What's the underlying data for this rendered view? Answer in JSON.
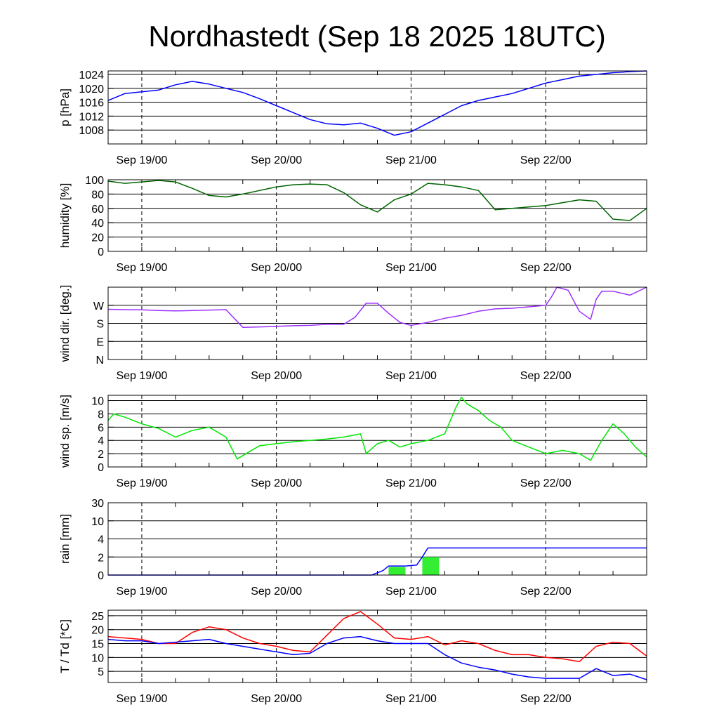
{
  "title": "Nordhastedt (Sep 18 2025 18UTC)",
  "chart_data": [
    {
      "id": "pressure",
      "type": "line",
      "ylabel": "p [hPa]",
      "ylim": [
        1004,
        1025
      ],
      "yticks": [
        1008,
        1012,
        1016,
        1020,
        1024
      ],
      "ytick_labels": [
        "1008",
        "1012",
        "1016",
        "1020",
        "1024"
      ],
      "x_tick_labels": [
        "Sep 19/00",
        "Sep 20/00",
        "Sep 21/00",
        "Sep 22/00"
      ],
      "series": [
        {
          "color": "#0000ff",
          "x": [
            0,
            3,
            6,
            9,
            12,
            15,
            18,
            21,
            24,
            27,
            30,
            33,
            36,
            39,
            42,
            45,
            48,
            51,
            54,
            57,
            60,
            63,
            66,
            69,
            72,
            75,
            78,
            81,
            84,
            87,
            90,
            93,
            96
          ],
          "y": [
            1016.5,
            1018.5,
            1019,
            1019.5,
            1021,
            1022,
            1021.2,
            1020,
            1018.8,
            1017,
            1015,
            1013,
            1011,
            1009.8,
            1009.5,
            1010,
            1008.5,
            1006.5,
            1007.5,
            1010,
            1012.5,
            1015,
            1016.5,
            1017.5,
            1018.5,
            1020,
            1021.5,
            1022.5,
            1023.5,
            1024,
            1024.5,
            1024.8,
            1025
          ]
        }
      ]
    },
    {
      "id": "humidity",
      "type": "line",
      "ylabel": "humidity [%]",
      "ylim": [
        0,
        100
      ],
      "yticks": [
        0,
        20,
        40,
        60,
        80,
        100
      ],
      "ytick_labels": [
        "0",
        "20",
        "40",
        "60",
        "80",
        "100"
      ],
      "x_tick_labels": [
        "Sep 19/00",
        "Sep 20/00",
        "Sep 21/00",
        "Sep 22/00"
      ],
      "series": [
        {
          "color": "#006400",
          "x": [
            0,
            3,
            6,
            9,
            12,
            15,
            18,
            21,
            24,
            27,
            30,
            33,
            36,
            39,
            42,
            45,
            48,
            51,
            54,
            57,
            60,
            63,
            66,
            69,
            72,
            75,
            78,
            81,
            84,
            87,
            90,
            93,
            96
          ],
          "y": [
            98,
            95,
            97,
            99,
            97,
            88,
            78,
            76,
            80,
            85,
            90,
            93,
            94,
            93,
            82,
            65,
            55,
            72,
            80,
            95,
            93,
            90,
            85,
            58,
            60,
            62,
            64,
            68,
            72,
            70,
            45,
            43,
            60
          ]
        }
      ]
    },
    {
      "id": "wind_direction",
      "type": "line",
      "ylabel": "wind dir. [deg.]",
      "ylim": [
        0,
        360
      ],
      "yticks": [
        0,
        90,
        180,
        270
      ],
      "ytick_labels": [
        "N",
        "E",
        "S",
        "W"
      ],
      "x_tick_labels": [
        "Sep 19/00",
        "Sep 20/00",
        "Sep 21/00",
        "Sep 22/00"
      ],
      "series": [
        {
          "color": "#9b30ff",
          "x": [
            0,
            3,
            6,
            9,
            12,
            15,
            18,
            21,
            24,
            27,
            30,
            33,
            36,
            39,
            42,
            44,
            46,
            48,
            50,
            52,
            54,
            57,
            60,
            63,
            66,
            69,
            72,
            75,
            78,
            79,
            80,
            82,
            84,
            86,
            87,
            88,
            90,
            93,
            96
          ],
          "y": [
            250,
            248,
            247,
            244,
            242,
            244,
            246,
            248,
            160,
            162,
            165,
            168,
            170,
            175,
            175,
            210,
            280,
            280,
            230,
            185,
            170,
            185,
            205,
            220,
            240,
            252,
            255,
            262,
            270,
            310,
            360,
            345,
            240,
            200,
            300,
            340,
            340,
            320,
            360
          ]
        }
      ]
    },
    {
      "id": "wind_speed",
      "type": "line",
      "ylabel": "wind sp. [m/s]",
      "ylim": [
        0,
        10.8
      ],
      "yticks": [
        0,
        2,
        4,
        6,
        8,
        10
      ],
      "ytick_labels": [
        "0",
        "2",
        "4",
        "6",
        "8",
        "10"
      ],
      "x_tick_labels": [
        "Sep 19/00",
        "Sep 20/00",
        "Sep 21/00",
        "Sep 22/00"
      ],
      "series": [
        {
          "color": "#00e600",
          "x": [
            0,
            1,
            3,
            6,
            9,
            12,
            15,
            18,
            21,
            23,
            25,
            27,
            30,
            33,
            36,
            39,
            42,
            45,
            46,
            48,
            50,
            52,
            54,
            57,
            60,
            62,
            63,
            64,
            66,
            68,
            70,
            72,
            75,
            78,
            81,
            84,
            86,
            88,
            90,
            92,
            94,
            96
          ],
          "y": [
            7,
            8,
            7.5,
            6.5,
            5.8,
            4.5,
            5.5,
            6,
            4.5,
            1.2,
            2.2,
            3.2,
            3.5,
            3.8,
            4,
            4.2,
            4.5,
            5,
            2,
            3.5,
            4,
            3,
            3.5,
            4,
            5,
            9,
            10.5,
            9.5,
            8.5,
            7,
            6,
            4,
            3,
            2,
            2.5,
            2,
            1,
            4,
            6.5,
            5,
            3,
            1.5
          ]
        }
      ]
    },
    {
      "id": "rain",
      "type": "bar+line",
      "ylabel": "rain [mm]",
      "ylim": [
        0,
        30
      ],
      "scale": "piecewise",
      "yticks": [
        0,
        2,
        4,
        10,
        30
      ],
      "ytick_labels": [
        "0",
        "2",
        "4",
        "10",
        "30"
      ],
      "x_tick_labels": [
        "Sep 19/00",
        "Sep 20/00",
        "Sep 21/00",
        "Sep 22/00"
      ],
      "bars": {
        "color": "#33ee33",
        "items": [
          {
            "x_start": 50,
            "x_end": 53,
            "value": 0.9
          },
          {
            "x_start": 56,
            "x_end": 59,
            "value": 2
          }
        ]
      },
      "series": [
        {
          "color": "#0000ff",
          "x": [
            0,
            47,
            49,
            50,
            53,
            55,
            56,
            57,
            96
          ],
          "y": [
            0,
            0,
            0.5,
            1,
            1,
            1.1,
            2,
            3,
            3
          ]
        }
      ]
    },
    {
      "id": "temperature",
      "type": "line",
      "ylabel": "T / Td [*C]",
      "ylim": [
        1,
        27
      ],
      "yticks": [
        5,
        10,
        15,
        20,
        25
      ],
      "ytick_labels": [
        "5",
        "10",
        "15",
        "20",
        "25"
      ],
      "x_tick_labels": [
        "Sep 19/00",
        "Sep 20/00",
        "Sep 21/00",
        "Sep 22/00"
      ],
      "series": [
        {
          "color": "#ff0000",
          "x": [
            0,
            3,
            6,
            9,
            12,
            15,
            18,
            21,
            24,
            27,
            30,
            33,
            36,
            39,
            42,
            45,
            48,
            51,
            54,
            57,
            60,
            63,
            66,
            69,
            72,
            75,
            78,
            81,
            84,
            87,
            90,
            93,
            96
          ],
          "y": [
            17.5,
            17,
            16.5,
            15,
            15,
            19,
            21,
            20,
            17,
            15,
            14,
            12.5,
            12,
            18,
            24,
            26.5,
            22,
            17,
            16.5,
            17.5,
            14.5,
            16,
            15,
            12.5,
            11,
            11,
            10,
            9.5,
            8.5,
            14,
            15.5,
            15,
            10.5
          ]
        },
        {
          "color": "#0000ff",
          "x": [
            0,
            3,
            6,
            9,
            12,
            15,
            18,
            21,
            24,
            27,
            30,
            33,
            36,
            39,
            42,
            45,
            48,
            51,
            54,
            57,
            60,
            63,
            66,
            69,
            72,
            75,
            78,
            81,
            84,
            87,
            90,
            93,
            96
          ],
          "y": [
            16.5,
            16,
            16,
            15,
            15.5,
            16,
            16.5,
            15,
            14,
            13,
            12,
            11,
            11.5,
            15,
            17,
            17.5,
            16,
            15,
            15,
            15,
            11,
            8,
            6.5,
            5.5,
            4,
            3,
            2.5,
            2.5,
            2.5,
            6,
            3.5,
            4,
            2
          ]
        }
      ]
    }
  ]
}
